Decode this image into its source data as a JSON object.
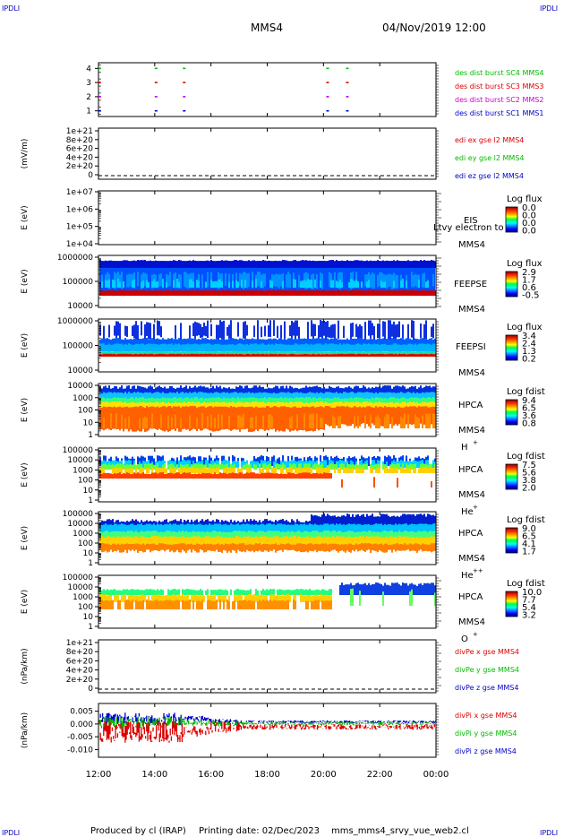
{
  "corner_labels": {
    "top_left": "IPDLI",
    "top_right": "IPDLI",
    "bottom_left": "IPDLI",
    "bottom_right": "IPDLI"
  },
  "header": {
    "spacecraft": "MMS4",
    "datetime": "04/Nov/2019 12:00"
  },
  "footer": {
    "produced_by": "Produced by cl (IRAP)",
    "printing_date": "Printing date: 02/Dec/2023",
    "filename": "mms_mms4_srvy_vue_web2.cl"
  },
  "colors": {
    "red": "#dd0000",
    "green": "#00bb00",
    "blue": "#0000cc",
    "magenta": "#cc00cc"
  },
  "chart_data": [
    {
      "panel": "burst",
      "type": "scatter",
      "xlabel": "",
      "ylabel": "",
      "x_ticks": [
        "12:00",
        "14:00",
        "16:00",
        "18:00",
        "20:00",
        "22:00",
        "00:00"
      ],
      "y_ticks": [
        "1",
        "2",
        "3",
        "4"
      ],
      "ylim": [
        0.6,
        4.4
      ],
      "legend": [
        {
          "name": "des dist burst SC1 MMS1",
          "color": "#0000cc",
          "y": 1
        },
        {
          "name": "des dist burst SC2 MMS2",
          "color": "#cc00cc",
          "y": 2
        },
        {
          "name": "des dist burst SC3 MMS3",
          "color": "#dd0000",
          "y": 3
        },
        {
          "name": "des dist burst SC4 MMS4",
          "color": "#00bb00",
          "y": 4
        }
      ],
      "x_hours": [
        12.0,
        14.0,
        15.0,
        20.1,
        20.8
      ]
    },
    {
      "panel": "edi_e",
      "type": "line",
      "ylabel": "(mV/m)",
      "y_ticks": [
        "0",
        "2e+20",
        "4e+20",
        "6e+20",
        "8e+20",
        "1e+21"
      ],
      "ylim": [
        0,
        1.05e+21
      ],
      "series": [
        {
          "name": "edi ex gse l2 MMS4",
          "color": "#dd0000",
          "values": [
            0
          ]
        },
        {
          "name": "edi ey gse l2 MMS4",
          "color": "#00bb00",
          "values": [
            0
          ]
        },
        {
          "name": "edi ez gse l2 MMS4",
          "color": "#0000cc",
          "values": [
            0
          ]
        }
      ]
    },
    {
      "panel": "eis",
      "type": "heatmap",
      "ylabel": "E (eV)",
      "y_ticks": [
        "1e+04",
        "1e+05",
        "1e+06",
        "1e+07"
      ],
      "log_y": true,
      "instrument": [
        "EIS",
        "MMS4"
      ],
      "overlay_text": "Ltvy electron to",
      "colorbar": {
        "title": "Log flux",
        "ticks": [
          "0.0",
          "0.0",
          "0.0",
          "0.0"
        ]
      }
    },
    {
      "panel": "feepse",
      "type": "heatmap",
      "ylabel": "E (eV)",
      "y_ticks": [
        "10000",
        "100000",
        "1000000"
      ],
      "log_y": true,
      "instrument": [
        "FEEPSE",
        "MMS4"
      ],
      "colorbar": {
        "title": "Log flux",
        "ticks": [
          "2.9",
          "1.7",
          "0.6",
          "-0.5"
        ]
      }
    },
    {
      "panel": "feepsi",
      "type": "heatmap",
      "ylabel": "E (eV)",
      "y_ticks": [
        "10000",
        "100000",
        "1000000"
      ],
      "log_y": true,
      "instrument": [
        "FEEPSI",
        "MMS4"
      ],
      "colorbar": {
        "title": "Log flux",
        "ticks": [
          "3.4",
          "2.4",
          "1.3",
          "0.2"
        ]
      }
    },
    {
      "panel": "hpca_h",
      "type": "heatmap",
      "ylabel": "E (eV)",
      "y_ticks": [
        "1",
        "10",
        "100",
        "1000",
        "10000"
      ],
      "log_y": true,
      "instrument": [
        "HPCA",
        "MMS4"
      ],
      "species": "H",
      "species_sup": "+",
      "colorbar": {
        "title": "Log fdist",
        "ticks": [
          "9.4",
          "6.5",
          "3.6",
          "0.8"
        ]
      }
    },
    {
      "panel": "hpca_he",
      "type": "heatmap",
      "ylabel": "E (eV)",
      "y_ticks": [
        "1",
        "10",
        "100",
        "1000",
        "10000",
        "100000"
      ],
      "log_y": true,
      "instrument": [
        "HPCA",
        "MMS4"
      ],
      "species": "He",
      "species_sup": "+",
      "colorbar": {
        "title": "Log fdist",
        "ticks": [
          "7.5",
          "5.6",
          "3.8",
          "2.0"
        ]
      }
    },
    {
      "panel": "hpca_hepp",
      "type": "heatmap",
      "ylabel": "E (eV)",
      "y_ticks": [
        "1",
        "10",
        "100",
        "1000",
        "10000",
        "100000"
      ],
      "log_y": true,
      "instrument": [
        "HPCA",
        "MMS4"
      ],
      "species": "He",
      "species_sup": "++",
      "colorbar": {
        "title": "Log fdist",
        "ticks": [
          "9.0",
          "6.5",
          "4.1",
          "1.7"
        ]
      }
    },
    {
      "panel": "hpca_o",
      "type": "heatmap",
      "ylabel": "E (eV)",
      "y_ticks": [
        "1",
        "10",
        "100",
        "1000",
        "10000",
        "100000"
      ],
      "log_y": true,
      "instrument": [
        "HPCA",
        "MMS4"
      ],
      "species": "O",
      "species_sup": "+",
      "colorbar": {
        "title": "Log fdist",
        "ticks": [
          "10.0",
          "7.7",
          "5.4",
          "3.2"
        ]
      }
    },
    {
      "panel": "divpe",
      "type": "line",
      "ylabel": "(nPa/km)",
      "y_ticks": [
        "0",
        "2e+20",
        "4e+20",
        "6e+20",
        "8e+20",
        "1e+21"
      ],
      "ylim": [
        0,
        1.05e+21
      ],
      "series": [
        {
          "name": "divPe x gse MMS4",
          "color": "#dd0000",
          "values": [
            0
          ]
        },
        {
          "name": "divPe y gse MMS4",
          "color": "#00bb00",
          "values": [
            0
          ]
        },
        {
          "name": "divPe z gse MMS4",
          "color": "#0000cc",
          "values": [
            0
          ]
        }
      ]
    },
    {
      "panel": "divpi",
      "type": "line",
      "ylabel": "(nPa/km)",
      "y_ticks": [
        "-0.010",
        "-0.005",
        "0.000",
        "0.005"
      ],
      "ylim": [
        -0.013,
        0.008
      ],
      "x_ticks": [
        "12:00",
        "14:00",
        "16:00",
        "18:00",
        "20:00",
        "22:00",
        "00:00"
      ],
      "series": [
        {
          "name": "divPi x gse MMS4",
          "color": "#dd0000"
        },
        {
          "name": "divPi y gse MMS4",
          "color": "#00bb00"
        },
        {
          "name": "divPi z gse MMS4",
          "color": "#0000cc"
        }
      ]
    }
  ]
}
